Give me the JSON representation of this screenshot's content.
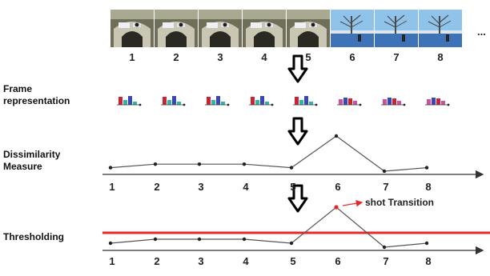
{
  "frames": {
    "labels": [
      "1",
      "2",
      "3",
      "4",
      "5",
      "6",
      "7",
      "8"
    ],
    "ellipsis": "..."
  },
  "stages": {
    "representation": [
      "Frame",
      "representation"
    ],
    "dissimilarity": [
      "Dissimilarity",
      "Measure"
    ],
    "thresholding": "Thresholding"
  },
  "dissimilarity_values": [
    0.1,
    0.2,
    0.2,
    0.2,
    0.1,
    1.0,
    0.0,
    0.1
  ],
  "thresholding_values": [
    0.1,
    0.2,
    0.2,
    0.2,
    0.1,
    1.0,
    0.0,
    0.1
  ],
  "threshold_level": 0.6,
  "annotation": "shot Transition",
  "colors": {
    "threshold_line": "#e8272a",
    "peak_point": "#e8272a",
    "histogram_bars": [
      "#cc2233",
      "#2bb6a8",
      "#3b46b8",
      "#d04fa0"
    ]
  },
  "icons": [
    "down-arrow-icon",
    "down-arrow-icon",
    "down-arrow-icon"
  ]
}
